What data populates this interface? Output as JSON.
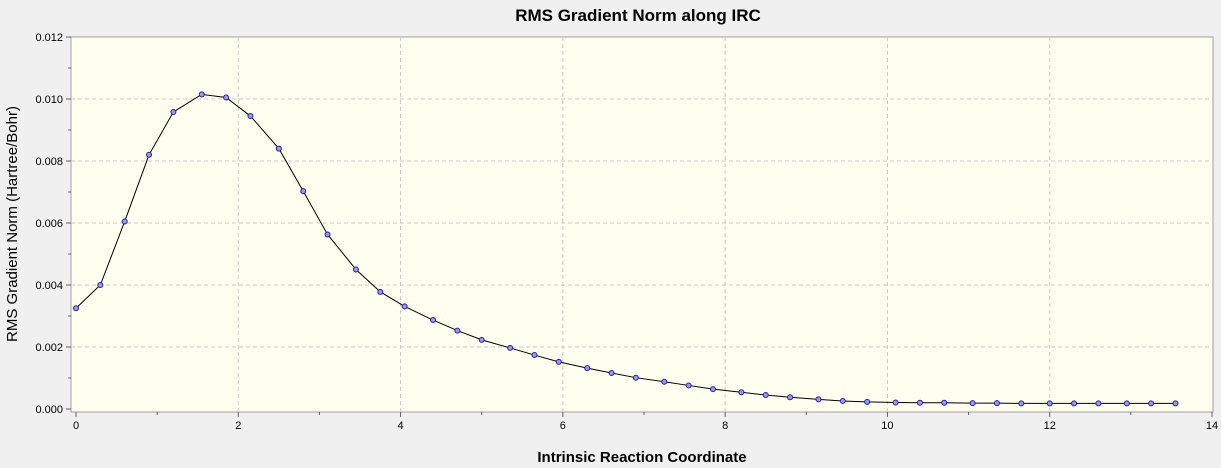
{
  "chart_data": {
    "type": "line",
    "title": "RMS Gradient Norm along IRC",
    "xlabel": "Intrinsic Reaction Coordinate",
    "ylabel": "RMS Gradient Norm (Hartree/Bohr)",
    "xlim": [
      0,
      14
    ],
    "ylim": [
      0,
      0.012
    ],
    "x_ticks": [
      "0",
      "2",
      "4",
      "6",
      "8",
      "10",
      "12",
      "14"
    ],
    "y_ticks": [
      "0.000",
      "0.002",
      "0.004",
      "0.006",
      "0.008",
      "0.010",
      "0.012"
    ],
    "grid": true,
    "legend": "none",
    "series": [
      {
        "x": [
          0,
          0.3,
          0.6,
          0.9,
          1.2,
          1.55,
          1.85,
          2.15,
          2.5,
          2.8,
          3.1,
          3.45,
          3.75,
          4.05,
          4.4,
          4.7,
          5.0,
          5.35,
          5.65,
          5.95,
          6.3,
          6.6,
          6.9,
          7.25,
          7.55,
          7.85,
          8.2,
          8.5,
          8.8,
          9.15,
          9.45,
          9.75,
          10.1,
          10.4,
          10.7,
          11.05,
          11.35,
          11.65,
          12.0,
          12.3,
          12.6,
          12.95,
          13.25,
          13.55
        ],
        "values": [
          0.00325,
          0.004,
          0.00605,
          0.0082,
          0.00958,
          0.01015,
          0.01005,
          0.00945,
          0.0084,
          0.00703,
          0.00563,
          0.0045,
          0.00378,
          0.00331,
          0.00287,
          0.00253,
          0.00223,
          0.00197,
          0.00174,
          0.00152,
          0.00132,
          0.00116,
          0.00101,
          0.00088,
          0.00076,
          0.00064,
          0.00054,
          0.00045,
          0.00038,
          0.00031,
          0.00026,
          0.00023,
          0.00021,
          0.0002,
          0.0002,
          0.00019,
          0.00019,
          0.00018,
          0.00018,
          0.00018,
          0.00018,
          0.00018,
          0.00018,
          0.00018
        ]
      }
    ],
    "colors": {
      "plot_background": "#fffff0",
      "grid": "#c8c8c8",
      "line": "#000000",
      "marker_fill": "#9a9ae8",
      "marker_stroke": "#2020a0"
    }
  }
}
